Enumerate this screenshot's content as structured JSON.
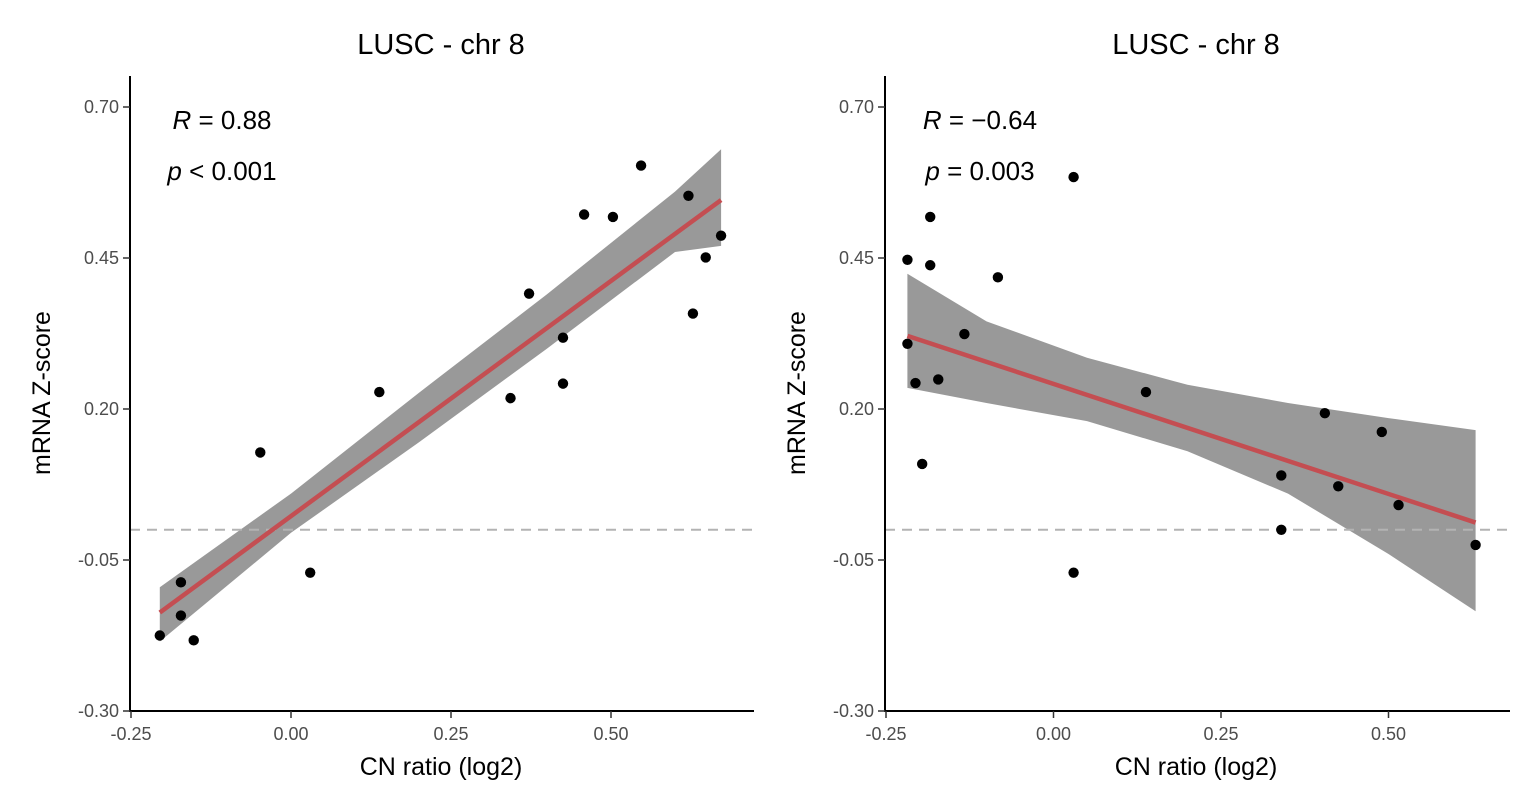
{
  "chart_data": [
    {
      "type": "scatter",
      "title": "LUSC - chr 8",
      "xlabel": "CN ratio (log2)",
      "ylabel": "mRNA Z-score",
      "xlim": [
        -0.25,
        0.7
      ],
      "ylim": [
        -0.3,
        0.75
      ],
      "x_ticks": [
        "-0.25",
        "0.00",
        "0.25",
        "0.50"
      ],
      "y_ticks": [
        "-0.30",
        "-0.05",
        "0.20",
        "0.45",
        "0.70"
      ],
      "reference_line_y": 0.0,
      "stat_r_symbol": "R",
      "stat_r_value": " = 0.88",
      "stat_p_symbol": "p",
      "stat_p_value": " < 0.001",
      "points": [
        {
          "x": -0.205,
          "y": -0.175
        },
        {
          "x": -0.172,
          "y": -0.087
        },
        {
          "x": -0.172,
          "y": -0.142
        },
        {
          "x": -0.152,
          "y": -0.183
        },
        {
          "x": -0.048,
          "y": 0.128
        },
        {
          "x": 0.03,
          "y": -0.071
        },
        {
          "x": 0.138,
          "y": 0.228
        },
        {
          "x": 0.343,
          "y": 0.218
        },
        {
          "x": 0.372,
          "y": 0.391
        },
        {
          "x": 0.425,
          "y": 0.318
        },
        {
          "x": 0.425,
          "y": 0.242
        },
        {
          "x": 0.458,
          "y": 0.522
        },
        {
          "x": 0.503,
          "y": 0.518
        },
        {
          "x": 0.547,
          "y": 0.603
        },
        {
          "x": 0.621,
          "y": 0.553
        },
        {
          "x": 0.628,
          "y": 0.358
        },
        {
          "x": 0.648,
          "y": 0.451
        },
        {
          "x": 0.672,
          "y": 0.487
        }
      ],
      "fit_line": {
        "x": [
          -0.205,
          0.672
        ],
        "y": [
          -0.137,
          0.546
        ]
      },
      "ci_band": {
        "x": [
          -0.205,
          0.0,
          0.2,
          0.4,
          0.6,
          0.672
        ],
        "upper": [
          -0.095,
          0.06,
          0.227,
          0.39,
          0.56,
          0.63
        ],
        "lower": [
          -0.185,
          -0.005,
          0.145,
          0.3,
          0.46,
          0.47
        ]
      },
      "colors": {
        "fit": "#c44e52",
        "band": "#999999",
        "point": "#000000",
        "refline": "#b3b3b3"
      }
    },
    {
      "type": "scatter",
      "title": "LUSC - chr 8",
      "xlabel": "CN ratio (log2)",
      "ylabel": "mRNA Z-score",
      "xlim": [
        -0.25,
        0.7
      ],
      "ylim": [
        -0.3,
        0.75
      ],
      "x_ticks": [
        "-0.25",
        "0.00",
        "0.25",
        "0.50"
      ],
      "y_ticks": [
        "-0.30",
        "-0.05",
        "0.20",
        "0.45",
        "0.70"
      ],
      "reference_line_y": 0.0,
      "stat_r_symbol": "R",
      "stat_r_value": " = −0.64",
      "stat_p_symbol": "p",
      "stat_p_value": " = 0.003",
      "points": [
        {
          "x": -0.218,
          "y": 0.447
        },
        {
          "x": -0.218,
          "y": 0.308
        },
        {
          "x": -0.206,
          "y": 0.243
        },
        {
          "x": -0.196,
          "y": 0.109
        },
        {
          "x": -0.184,
          "y": 0.518
        },
        {
          "x": -0.184,
          "y": 0.438
        },
        {
          "x": -0.172,
          "y": 0.249
        },
        {
          "x": -0.133,
          "y": 0.324
        },
        {
          "x": -0.083,
          "y": 0.418
        },
        {
          "x": 0.03,
          "y": 0.584
        },
        {
          "x": 0.03,
          "y": -0.071
        },
        {
          "x": 0.138,
          "y": 0.228
        },
        {
          "x": 0.34,
          "y": 0.09
        },
        {
          "x": 0.34,
          "y": 0.0
        },
        {
          "x": 0.405,
          "y": 0.193
        },
        {
          "x": 0.425,
          "y": 0.072
        },
        {
          "x": 0.49,
          "y": 0.162
        },
        {
          "x": 0.515,
          "y": 0.041
        },
        {
          "x": 0.63,
          "y": -0.025
        }
      ],
      "fit_line": {
        "x": [
          -0.218,
          0.63
        ],
        "y": [
          0.321,
          0.012
        ]
      },
      "ci_band": {
        "x": [
          -0.218,
          -0.1,
          0.05,
          0.2,
          0.35,
          0.5,
          0.63
        ],
        "upper": [
          0.424,
          0.345,
          0.285,
          0.24,
          0.21,
          0.185,
          0.165
        ],
        "lower": [
          0.235,
          0.21,
          0.18,
          0.13,
          0.06,
          -0.04,
          -0.135
        ]
      },
      "colors": {
        "fit": "#c44e52",
        "band": "#999999",
        "point": "#000000",
        "refline": "#b3b3b3"
      }
    }
  ]
}
